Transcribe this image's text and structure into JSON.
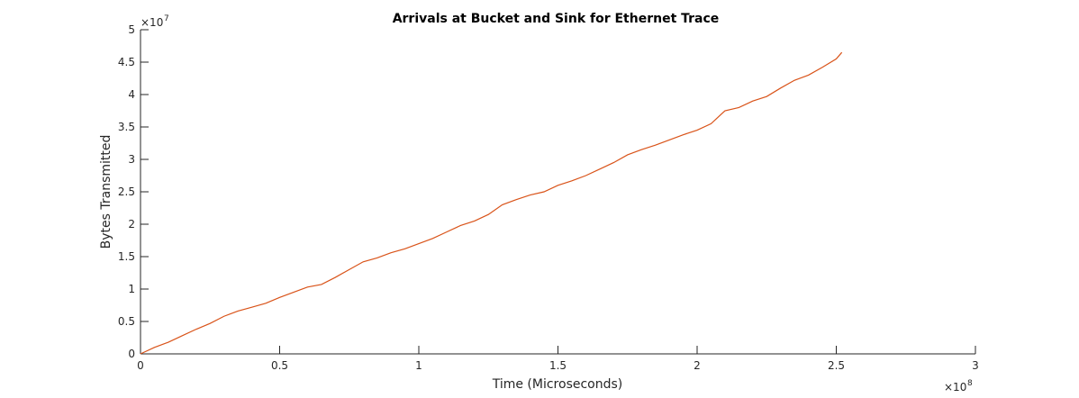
{
  "chart_data": {
    "type": "line",
    "title": "Arrivals at Bucket and Sink for Ethernet Trace",
    "xlabel": "Time (Microseconds)",
    "ylabel": "Bytes Transmitted",
    "x_multiplier": {
      "base": "×10",
      "exponent": "8"
    },
    "y_multiplier": {
      "base": "×10",
      "exponent": "7"
    },
    "x": [
      0,
      0.05,
      0.1,
      0.15,
      0.2,
      0.25,
      0.3,
      0.35,
      0.4,
      0.45,
      0.5,
      0.55,
      0.6,
      0.65,
      0.7,
      0.75,
      0.8,
      0.85,
      0.9,
      0.95,
      1.0,
      1.05,
      1.1,
      1.15,
      1.2,
      1.25,
      1.3,
      1.35,
      1.4,
      1.45,
      1.5,
      1.55,
      1.6,
      1.65,
      1.7,
      1.75,
      1.8,
      1.85,
      1.9,
      1.95,
      2.0,
      2.05,
      2.1,
      2.15,
      2.2,
      2.25,
      2.3,
      2.35,
      2.4,
      2.45,
      2.5,
      2.52
    ],
    "values": [
      0,
      0.1,
      0.18,
      0.28,
      0.38,
      0.47,
      0.58,
      0.66,
      0.72,
      0.78,
      0.87,
      0.95,
      1.03,
      1.07,
      1.18,
      1.3,
      1.42,
      1.48,
      1.56,
      1.62,
      1.7,
      1.78,
      1.88,
      1.98,
      2.05,
      2.15,
      2.3,
      2.38,
      2.45,
      2.5,
      2.6,
      2.67,
      2.75,
      2.85,
      2.95,
      3.07,
      3.15,
      3.22,
      3.3,
      3.38,
      3.45,
      3.55,
      3.75,
      3.8,
      3.9,
      3.97,
      4.1,
      4.22,
      4.3,
      4.42,
      4.55,
      4.65
    ],
    "color": "#d95319",
    "xlim": [
      0,
      3
    ],
    "xticks": [
      0,
      0.5,
      1,
      1.5,
      2,
      2.5,
      3
    ],
    "ylim": [
      0,
      5
    ],
    "yticks": [
      0,
      0.5,
      1,
      1.5,
      2,
      2.5,
      3,
      3.5,
      4,
      4.5,
      5
    ],
    "grid": false
  }
}
